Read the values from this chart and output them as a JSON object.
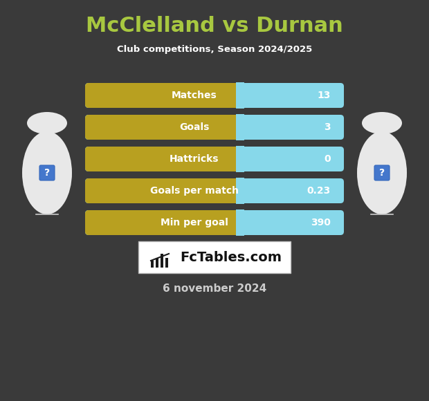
{
  "title": "McClelland vs Durnan",
  "subtitle": "Club competitions, Season 2024/2025",
  "date_text": "6 november 2024",
  "background_color": "#3a3a3a",
  "title_color": "#a8c840",
  "subtitle_color": "#ffffff",
  "date_color": "#cccccc",
  "stats": [
    {
      "label": "Matches",
      "value": "13"
    },
    {
      "label": "Goals",
      "value": "3"
    },
    {
      "label": "Hattricks",
      "value": "0"
    },
    {
      "label": "Goals per match",
      "value": "0.23"
    },
    {
      "label": "Min per goal",
      "value": "390"
    }
  ],
  "bar_left_color": "#b8a020",
  "bar_right_color": "#87d8ea",
  "bar_label_color": "#ffffff",
  "bar_value_color": "#ffffff",
  "figsize": [
    6.2,
    5.8
  ],
  "dpi": 100
}
